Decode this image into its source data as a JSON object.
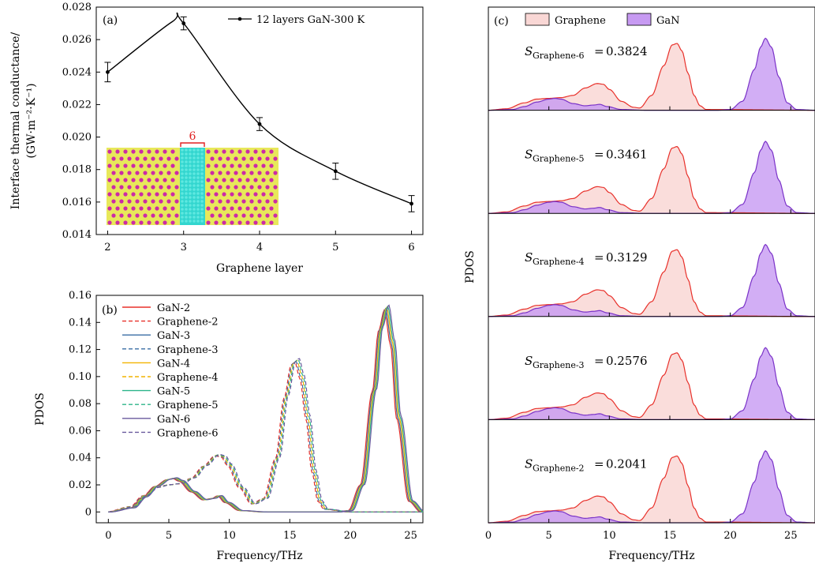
{
  "chart_data": [
    {
      "panel": "(a)",
      "type": "line",
      "xlabel": "Graphene layer",
      "ylabel_line1": "Interface thermal conductance/",
      "ylabel_line2": "(GW·m⁻²·K⁻¹)",
      "xlim": [
        1.85,
        6.15
      ],
      "ylim": [
        0.014,
        0.028
      ],
      "xticks": [
        2,
        3,
        4,
        5,
        6
      ],
      "yticks": [
        0.014,
        0.016,
        0.018,
        0.02,
        0.022,
        0.024,
        0.026,
        0.028
      ],
      "ytick_labels": [
        "0.014",
        "0.016",
        "0.018",
        "0.020",
        "0.022",
        "0.024",
        "0.026",
        "0.028"
      ],
      "series": [
        {
          "name": "12 layers GaN-300 K",
          "x": [
            2,
            3,
            4,
            5,
            6
          ],
          "y": [
            0.024,
            0.027,
            0.0208,
            0.0179,
            0.0159
          ],
          "err": [
            0.0006,
            0.0004,
            0.0004,
            0.0005,
            0.0005
          ],
          "curve_peak": [
            2.85,
            0.0271
          ],
          "color": "#000000"
        }
      ],
      "inset_label": "6",
      "inset_colors": {
        "atom_yellow": "#e8e85a",
        "atom_magenta": "#cc2aa6",
        "graphene": "#33d6cf",
        "marker": "#e02020"
      }
    },
    {
      "panel": "(b)",
      "type": "line",
      "xlabel": "Frequency/THz",
      "ylabel": "PDOS",
      "xlim": [
        -1,
        26
      ],
      "ylim": [
        -0.008,
        0.16
      ],
      "xticks": [
        0,
        5,
        10,
        15,
        20,
        25
      ],
      "yticks": [
        0,
        0.02,
        0.04,
        0.06,
        0.08,
        0.1,
        0.12,
        0.14,
        0.16
      ],
      "ytick_labels": [
        "0",
        "0.02",
        "0.04",
        "0.06",
        "0.08",
        "0.10",
        "0.12",
        "0.14",
        "0.16"
      ],
      "series": [
        {
          "name": "GaN-2",
          "color": "#e8302a",
          "dash": false
        },
        {
          "name": "Graphene-2",
          "color": "#e8302a",
          "dash": true
        },
        {
          "name": "GaN-3",
          "color": "#3a6ea5",
          "dash": false
        },
        {
          "name": "Graphene-3",
          "color": "#3a6ea5",
          "dash": true
        },
        {
          "name": "GaN-4",
          "color": "#f2b400",
          "dash": false
        },
        {
          "name": "Graphene-4",
          "color": "#f2b400",
          "dash": true
        },
        {
          "name": "GaN-5",
          "color": "#2cb58a",
          "dash": false
        },
        {
          "name": "Graphene-5",
          "color": "#2cb58a",
          "dash": true
        },
        {
          "name": "GaN-6",
          "color": "#6a5a9e",
          "dash": false
        },
        {
          "name": "Graphene-6",
          "color": "#6a5a9e",
          "dash": true
        }
      ],
      "gan_curve": {
        "x": [
          0,
          2,
          3,
          4,
          5,
          5.5,
          6,
          7,
          8,
          8.7,
          9.2,
          9.8,
          11,
          13,
          15,
          17,
          19,
          20,
          21,
          22,
          22.5,
          23,
          23.5,
          24,
          25,
          26
        ],
        "y": [
          0,
          0.003,
          0.011,
          0.019,
          0.024,
          0.025,
          0.023,
          0.015,
          0.009,
          0.01,
          0.012,
          0.007,
          0.001,
          0,
          0,
          0,
          0,
          0.001,
          0.02,
          0.09,
          0.135,
          0.151,
          0.125,
          0.07,
          0.008,
          0
        ]
      },
      "graphene_curve": {
        "x": [
          0,
          2,
          3,
          4,
          5,
          6,
          7,
          8,
          9,
          9.5,
          10,
          11,
          12,
          13,
          14,
          14.7,
          15.3,
          15.6,
          16,
          16.5,
          17,
          17.5,
          18,
          20,
          26
        ],
        "y": [
          0,
          0.004,
          0.012,
          0.018,
          0.02,
          0.021,
          0.025,
          0.034,
          0.042,
          0.041,
          0.035,
          0.018,
          0.006,
          0.01,
          0.04,
          0.085,
          0.11,
          0.112,
          0.1,
          0.07,
          0.03,
          0.008,
          0.002,
          0,
          0
        ]
      }
    },
    {
      "panel": "(c)",
      "type": "area",
      "xlabel": "Frequency/THz",
      "ylabel": "PDOS",
      "xlim": [
        0,
        27
      ],
      "xticks": [
        0,
        5,
        10,
        15,
        20,
        25
      ],
      "legend": [
        {
          "name": "Graphene",
          "fill": "#f9d7d5",
          "stroke": "#e8302a"
        },
        {
          "name": "GaN",
          "fill": "#c79af2",
          "stroke": "#7a32c8"
        }
      ],
      "rows": [
        {
          "label_prefix": "S",
          "label_sub": "Graphene-6",
          "value": "0.3824"
        },
        {
          "label_prefix": "S",
          "label_sub": "Graphene-5",
          "value": "0.3461"
        },
        {
          "label_prefix": "S",
          "label_sub": "Graphene-4",
          "value": "0.3129"
        },
        {
          "label_prefix": "S",
          "label_sub": "Graphene-3",
          "value": "0.2576"
        },
        {
          "label_prefix": "S",
          "label_sub": "Graphene-2",
          "value": "0.2041"
        }
      ],
      "graphene_curve": {
        "x": [
          0,
          1.5,
          3,
          4,
          5,
          6,
          7,
          8,
          9,
          9.5,
          10,
          11,
          12,
          12.5,
          13.5,
          14.5,
          15.2,
          15.6,
          16,
          16.5,
          17,
          17.5,
          18,
          27
        ],
        "y": [
          0,
          0.02,
          0.1,
          0.15,
          0.16,
          0.17,
          0.2,
          0.3,
          0.36,
          0.35,
          0.28,
          0.12,
          0.04,
          0.03,
          0.2,
          0.6,
          0.88,
          0.9,
          0.8,
          0.5,
          0.2,
          0.06,
          0.01,
          0
        ]
      },
      "gan_curve": {
        "x": [
          0,
          2,
          3,
          4,
          5,
          5.5,
          6,
          7,
          8,
          8.7,
          9.2,
          9.8,
          11,
          13,
          19,
          20,
          21,
          22,
          22.5,
          22.9,
          23.4,
          24,
          24.7,
          25.5,
          27
        ],
        "y": [
          0,
          0.01,
          0.05,
          0.11,
          0.15,
          0.16,
          0.15,
          0.09,
          0.06,
          0.07,
          0.08,
          0.05,
          0.01,
          0,
          0,
          0.01,
          0.12,
          0.55,
          0.85,
          0.97,
          0.85,
          0.45,
          0.1,
          0.01,
          0
        ]
      }
    }
  ]
}
